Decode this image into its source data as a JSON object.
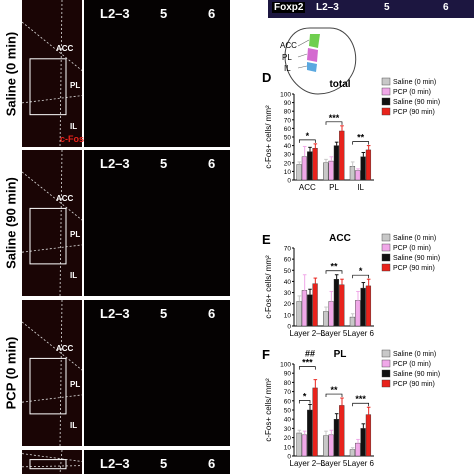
{
  "image_panels": [
    {
      "condition": "Saline (0 min)",
      "top": 0
    },
    {
      "condition": "Saline (90 min)",
      "top": 150
    },
    {
      "condition": "PCP (0 min)",
      "top": 300
    },
    {
      "condition": "",
      "top": 450
    }
  ],
  "layer_labels": [
    "L2–3",
    "5",
    "6"
  ],
  "region_labels": [
    "ACC",
    "PL",
    "IL"
  ],
  "stain_label": "c-Fos",
  "strip": {
    "stain": "Foxp2",
    "layers": [
      "L2–3",
      "5",
      "6"
    ]
  },
  "schematic_labels": [
    "ACC",
    "PL",
    "IL"
  ],
  "colors": {
    "saline0": "#c8c8c8",
    "pcp0": "#f0a8e8",
    "saline90": "#111111",
    "pcp90": "#e8231c"
  },
  "legend": [
    "Saline (0 min)",
    "PCP (0 min)",
    "Saline (90 min)",
    "PCP (90 min)"
  ],
  "chart_data": [
    {
      "panel": "D",
      "type": "bar",
      "title": "total",
      "ylabel": "c-Fos+ cells/ mm²",
      "ylim": [
        0,
        100
      ],
      "yticks": [
        0,
        10,
        20,
        30,
        40,
        50,
        60,
        70,
        80,
        90,
        100
      ],
      "categories": [
        "ACC",
        "PL",
        "IL"
      ],
      "series": [
        {
          "name": "Saline (0 min)",
          "values": [
            18,
            20,
            16
          ],
          "err": [
            3,
            4,
            5
          ]
        },
        {
          "name": "PCP (0 min)",
          "values": [
            27,
            22,
            11
          ],
          "err": [
            12,
            5,
            2
          ]
        },
        {
          "name": "Saline (90 min)",
          "values": [
            33,
            40,
            27
          ],
          "err": [
            5,
            4,
            5
          ]
        },
        {
          "name": "PCP (90 min)",
          "values": [
            37,
            57,
            35
          ],
          "err": [
            5,
            6,
            5
          ]
        }
      ],
      "annotations": [
        {
          "text": "*",
          "category": "ACC",
          "from": 0,
          "to": 3
        },
        {
          "text": "***",
          "category": "PL",
          "from": 0,
          "to": 3
        },
        {
          "text": "**",
          "category": "IL",
          "from": 0,
          "to": 3
        }
      ]
    },
    {
      "panel": "E",
      "type": "bar",
      "title": "ACC",
      "ylabel": "c-Fos+ cells/ mm²",
      "ylim": [
        0,
        70
      ],
      "yticks": [
        0,
        10,
        20,
        30,
        40,
        50,
        60,
        70
      ],
      "categories": [
        "Layer 2–3",
        "Layer 5",
        "Layer 6"
      ],
      "series": [
        {
          "name": "Saline (0 min)",
          "values": [
            22,
            13,
            8
          ],
          "err": [
            5,
            4,
            3
          ]
        },
        {
          "name": "PCP (0 min)",
          "values": [
            32,
            22,
            23
          ],
          "err": [
            14,
            9,
            8
          ]
        },
        {
          "name": "Saline (90 min)",
          "values": [
            28,
            42,
            34
          ],
          "err": [
            5,
            4,
            5
          ]
        },
        {
          "name": "PCP (90 min)",
          "values": [
            38,
            37,
            36
          ],
          "err": [
            5,
            5,
            6
          ]
        }
      ],
      "annotations": [
        {
          "text": "**",
          "category": "Layer 5",
          "from": 0,
          "to": 3
        },
        {
          "text": "*",
          "category": "Layer 6",
          "from": 0,
          "to": 3
        }
      ]
    },
    {
      "panel": "F",
      "type": "bar",
      "title": "PL",
      "ylabel": "c-Fos+ cells/ mm²",
      "ylim": [
        0,
        100
      ],
      "yticks": [
        0,
        10,
        20,
        30,
        40,
        50,
        60,
        70,
        80,
        90,
        100
      ],
      "categories": [
        "Layer 2–3",
        "Layer 5",
        "Layer 6"
      ],
      "series": [
        {
          "name": "Saline (0 min)",
          "values": [
            25,
            22,
            7
          ],
          "err": [
            3,
            5,
            2
          ]
        },
        {
          "name": "PCP (0 min)",
          "values": [
            23,
            23,
            14
          ],
          "err": [
            4,
            5,
            4
          ]
        },
        {
          "name": "Saline (90 min)",
          "values": [
            50,
            40,
            30
          ],
          "err": [
            6,
            6,
            5
          ]
        },
        {
          "name": "PCP (90 min)",
          "values": [
            74,
            55,
            45
          ],
          "err": [
            9,
            8,
            8
          ]
        }
      ],
      "annotations": [
        {
          "text": "*",
          "category": "Layer 2–3",
          "from": 0,
          "to": 2
        },
        {
          "text": "***",
          "category": "Layer 2–3",
          "from": 0,
          "to": 3
        },
        {
          "text": "##",
          "category": "Layer 2–3",
          "from": 1,
          "to": 3
        },
        {
          "text": "**",
          "category": "Layer 5",
          "from": 0,
          "to": 3
        },
        {
          "text": "***",
          "category": "Layer 6",
          "from": 0,
          "to": 3
        }
      ]
    }
  ]
}
